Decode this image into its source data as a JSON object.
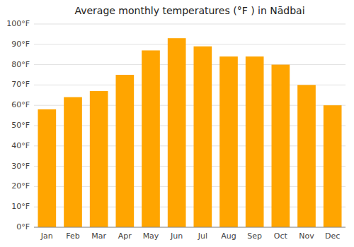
{
  "chart_data": {
    "type": "bar",
    "title": "Average monthly temperatures (°F ) in Nādbai",
    "categories": [
      "Jan",
      "Feb",
      "Mar",
      "Apr",
      "May",
      "Jun",
      "Jul",
      "Aug",
      "Sep",
      "Oct",
      "Nov",
      "Dec"
    ],
    "values": [
      58,
      64,
      67,
      75,
      87,
      93,
      89,
      84,
      84,
      80,
      70,
      60
    ],
    "color": "#FFA500",
    "ylim": [
      0,
      100
    ],
    "yticks": [
      {
        "value": 0,
        "label": "0°F"
      },
      {
        "value": 10,
        "label": "10°F"
      },
      {
        "value": 20,
        "label": "20°F"
      },
      {
        "value": 30,
        "label": "30°F"
      },
      {
        "value": 40,
        "label": "40°F"
      },
      {
        "value": 50,
        "label": "50°F"
      },
      {
        "value": 60,
        "label": "60°F"
      },
      {
        "value": 70,
        "label": "70°F"
      },
      {
        "value": 80,
        "label": "80°F"
      },
      {
        "value": 90,
        "label": "90°F"
      },
      {
        "value": 100,
        "label": "100°F"
      }
    ],
    "grid": true
  }
}
